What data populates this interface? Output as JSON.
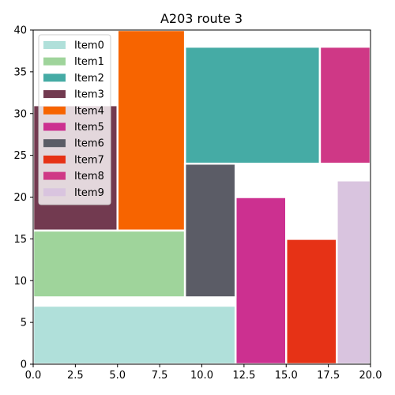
{
  "chart_data": {
    "type": "treemap",
    "title": "A203 route 3",
    "xlim": [
      0,
      20
    ],
    "ylim": [
      0,
      40
    ],
    "xticks": [
      0.0,
      2.5,
      5.0,
      7.5,
      10.0,
      12.5,
      15.0,
      17.5,
      20.0
    ],
    "xtick_labels": [
      "0.0",
      "2.5",
      "5.0",
      "7.5",
      "10.0",
      "12.5",
      "15.0",
      "17.5",
      "20.0"
    ],
    "yticks": [
      0,
      5,
      10,
      15,
      20,
      25,
      30,
      35,
      40
    ],
    "ytick_labels": [
      "0",
      "5",
      "10",
      "15",
      "20",
      "25",
      "30",
      "35",
      "40"
    ],
    "grid": false,
    "legend_position": "upper-left",
    "items": [
      {
        "name": "Item0",
        "color": "#b0e0da",
        "x0": 0,
        "x1": 12,
        "y0": 0,
        "y1": 7
      },
      {
        "name": "Item1",
        "color": "#9fd49b",
        "x0": 0,
        "x1": 9,
        "y0": 8,
        "y1": 16
      },
      {
        "name": "Item2",
        "color": "#45aba5",
        "x0": 9,
        "x1": 17,
        "y0": 24,
        "y1": 38
      },
      {
        "name": "Item3",
        "color": "#723a50",
        "x0": 0,
        "x1": 5,
        "y0": 16,
        "y1": 31
      },
      {
        "name": "Item4",
        "color": "#f76400",
        "x0": 5,
        "x1": 9,
        "y0": 16,
        "y1": 40
      },
      {
        "name": "Item5",
        "color": "#cc3090",
        "x0": 12,
        "x1": 15,
        "y0": 0,
        "y1": 20
      },
      {
        "name": "Item6",
        "color": "#5b5c66",
        "x0": 9,
        "x1": 12,
        "y0": 8,
        "y1": 24
      },
      {
        "name": "Item7",
        "color": "#e63216",
        "x0": 15,
        "x1": 18,
        "y0": 0,
        "y1": 15
      },
      {
        "name": "Item8",
        "color": "#cf3886",
        "x0": 17,
        "x1": 20,
        "y0": 24,
        "y1": 38
      },
      {
        "name": "Item9",
        "color": "#d9c4df",
        "x0": 18,
        "x1": 20,
        "y0": 0,
        "y1": 22
      }
    ]
  }
}
